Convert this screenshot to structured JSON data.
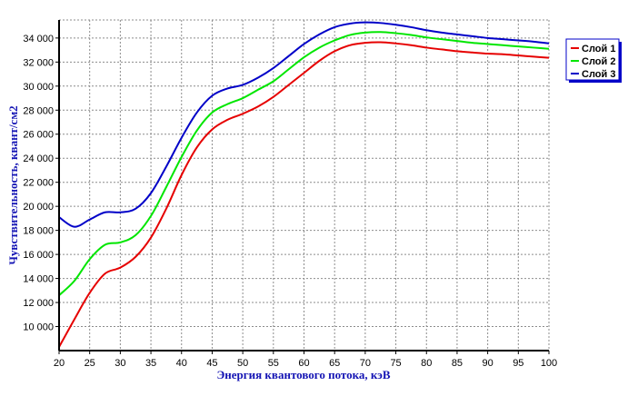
{
  "colors": {
    "axis_title": "#1414b4",
    "grid": "#8c8c8c",
    "legend_border": "#0000c8"
  },
  "chart_data": {
    "type": "line",
    "title": "",
    "xlabel": "Энергия квантового потока, кэВ",
    "ylabel": "Чувствительность, квант/см2",
    "xlim": [
      20,
      100
    ],
    "ylim": [
      8000,
      35500
    ],
    "grid": true,
    "legend_position": "right",
    "x_ticks": [
      20,
      25,
      30,
      35,
      40,
      45,
      50,
      55,
      60,
      65,
      70,
      75,
      80,
      85,
      90,
      95,
      100
    ],
    "y_ticks": [
      10000,
      12000,
      14000,
      16000,
      18000,
      20000,
      22000,
      24000,
      26000,
      28000,
      30000,
      32000,
      34000
    ],
    "y_tick_labels": [
      "10 000",
      "12 000",
      "14 000",
      "16 000",
      "18 000",
      "20 000",
      "22 000",
      "24 000",
      "26 000",
      "28 000",
      "30 000",
      "32 000",
      "34 000"
    ],
    "x": [
      20,
      22.5,
      25,
      27.5,
      30,
      32.5,
      35,
      37.5,
      40,
      42.5,
      45,
      47.5,
      50,
      52.5,
      55,
      57.5,
      60,
      62.5,
      65,
      67.5,
      70,
      72.5,
      75,
      77.5,
      80,
      82.5,
      85,
      87.5,
      90,
      92.5,
      95,
      97.5,
      100
    ],
    "series": [
      {
        "name": "Слой 1",
        "color": "#e60000",
        "values": [
          8300,
          10600,
          12800,
          14400,
          14900,
          15800,
          17400,
          19800,
          22600,
          24900,
          26400,
          27200,
          27700,
          28300,
          29100,
          30100,
          31100,
          32100,
          32900,
          33400,
          33600,
          33650,
          33550,
          33400,
          33200,
          33050,
          32900,
          32800,
          32700,
          32650,
          32550,
          32450,
          32350
        ]
      },
      {
        "name": "Слой 2",
        "color": "#00e600",
        "values": [
          12600,
          13800,
          15600,
          16800,
          17000,
          17600,
          19200,
          21600,
          24100,
          26300,
          27800,
          28500,
          29000,
          29700,
          30400,
          31400,
          32400,
          33200,
          33800,
          34250,
          34450,
          34500,
          34400,
          34250,
          34050,
          33900,
          33750,
          33600,
          33500,
          33400,
          33300,
          33200,
          33100
        ]
      },
      {
        "name": "Слой 3",
        "color": "#0000c8",
        "values": [
          19100,
          18300,
          18900,
          19500,
          19500,
          19800,
          21100,
          23300,
          25700,
          27800,
          29200,
          29800,
          30100,
          30700,
          31500,
          32500,
          33500,
          34300,
          34900,
          35200,
          35300,
          35250,
          35100,
          34900,
          34650,
          34450,
          34300,
          34150,
          34000,
          33900,
          33800,
          33700,
          33550
        ]
      }
    ]
  }
}
